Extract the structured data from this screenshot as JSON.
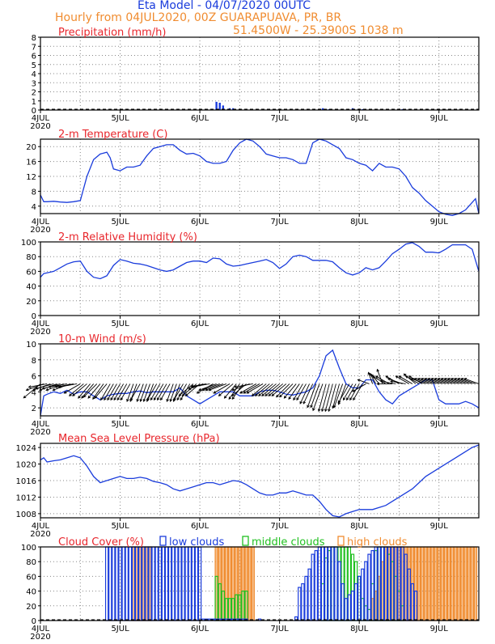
{
  "header": {
    "title": "Eta Model - 04/07/2020 00UTC",
    "subtitle": "Hourly from 04JUL2020, 00Z  GUARAPUAVA, PR, BR",
    "location": "51.4500W - 25.3900S    1038  m"
  },
  "colors": {
    "line": "#1a3cdc",
    "panel_title": "#e8262c",
    "header_title": "#1a3cdc",
    "header_sub": "#f08c30",
    "low": "#1a3cdc",
    "middle": "#20c020",
    "high": "#f08c30",
    "frame": "#000000",
    "grid": "#888888",
    "wind": "#000000",
    "bar_fill": "#1a3cdc"
  },
  "time_axis": {
    "hours": [
      0,
      132
    ],
    "tick_labels": [
      "4JUL",
      "5JUL",
      "6JUL",
      "7JUL",
      "8JUL",
      "9JUL"
    ],
    "year_label": "2020"
  },
  "chart_data": [
    {
      "id": "precip",
      "type": "bar",
      "title": "Precipitation (mm/h)",
      "ylim": [
        0,
        8
      ],
      "yticks": [
        0,
        1,
        2,
        3,
        4,
        5,
        6,
        7,
        8
      ],
      "x": [
        53,
        54,
        55,
        57,
        58,
        85,
        86,
        87,
        89,
        91,
        94,
        97,
        109,
        113
      ],
      "values": [
        0.9,
        0.8,
        0.5,
        0.2,
        0.2,
        0.2,
        0.1,
        0.1,
        0.1,
        0.1,
        0.2,
        0.1,
        0.1,
        0.1
      ]
    },
    {
      "id": "temp",
      "type": "line",
      "title": "2-m Temperature (C)",
      "ylim": [
        2,
        22
      ],
      "yticks": [
        4,
        8,
        12,
        16,
        20
      ],
      "x": [
        0,
        1,
        2,
        4,
        6,
        8,
        10,
        12,
        14,
        16,
        18,
        20,
        21,
        22,
        24,
        26,
        28,
        30,
        32,
        34,
        36,
        38,
        40,
        42,
        44,
        46,
        48,
        50,
        52,
        54,
        56,
        58,
        60,
        62,
        64,
        66,
        68,
        70,
        72,
        74,
        76,
        78,
        80,
        82,
        84,
        86,
        88,
        90,
        92,
        94,
        96,
        98,
        100,
        102,
        104,
        106,
        108,
        110,
        112,
        114,
        116,
        118,
        120,
        122,
        124,
        126,
        128,
        130,
        131,
        132
      ],
      "values": [
        7,
        5.2,
        5.2,
        5.3,
        5.1,
        5,
        5.2,
        5.5,
        12,
        16.5,
        18,
        18.5,
        17,
        14,
        13.5,
        14.5,
        14.5,
        15,
        17.5,
        19.5,
        20,
        20.5,
        20.5,
        19,
        18,
        18.2,
        17.5,
        16,
        15.5,
        15.5,
        16,
        19,
        21,
        22,
        21.5,
        20,
        18,
        17.5,
        17,
        17,
        16.5,
        15.5,
        15.5,
        21,
        22,
        21.5,
        20.5,
        19.5,
        17,
        16.5,
        15.5,
        15,
        13.5,
        15.5,
        14.5,
        14.5,
        14,
        12,
        9,
        7.5,
        5.5,
        4,
        2.5,
        1.8,
        1.5,
        2,
        3,
        5,
        6,
        2
      ]
    },
    {
      "id": "rh",
      "type": "line",
      "title": "2-m Relative Humidity (%)",
      "ylim": [
        0,
        100
      ],
      "yticks": [
        0,
        20,
        40,
        60,
        80,
        100
      ],
      "x": [
        0,
        1,
        2,
        4,
        6,
        8,
        10,
        12,
        14,
        16,
        18,
        20,
        22,
        24,
        26,
        28,
        30,
        32,
        34,
        36,
        38,
        40,
        42,
        44,
        46,
        48,
        50,
        52,
        54,
        56,
        58,
        60,
        62,
        64,
        66,
        68,
        70,
        72,
        74,
        76,
        78,
        80,
        82,
        84,
        86,
        88,
        90,
        92,
        94,
        96,
        98,
        100,
        102,
        104,
        106,
        108,
        110,
        112,
        114,
        116,
        118,
        120,
        122,
        124,
        126,
        128,
        130,
        132
      ],
      "values": [
        52,
        57,
        58,
        60,
        65,
        70,
        73,
        74,
        60,
        52,
        50,
        54,
        68,
        76,
        74,
        71,
        70,
        68,
        65,
        62,
        60,
        62,
        67,
        72,
        74,
        74,
        72,
        78,
        77,
        70,
        67,
        68,
        70,
        72,
        74,
        76,
        72,
        64,
        70,
        80,
        82,
        80,
        75,
        75,
        75,
        73,
        65,
        58,
        55,
        58,
        65,
        62,
        65,
        74,
        84,
        90,
        97,
        99,
        94,
        86,
        86,
        85,
        90,
        96,
        96,
        96,
        90,
        60
      ]
    },
    {
      "id": "wind",
      "type": "line",
      "title": "10-m Wind (m/s)",
      "ylim": [
        1,
        10
      ],
      "yticks": [
        2,
        4,
        6,
        8,
        10
      ],
      "x": [
        0,
        1,
        2,
        4,
        6,
        8,
        10,
        12,
        14,
        16,
        18,
        20,
        22,
        24,
        26,
        28,
        30,
        32,
        34,
        36,
        38,
        40,
        42,
        44,
        46,
        48,
        50,
        52,
        54,
        56,
        58,
        60,
        62,
        64,
        66,
        68,
        70,
        72,
        74,
        76,
        78,
        80,
        82,
        84,
        86,
        88,
        90,
        92,
        94,
        96,
        98,
        100,
        102,
        104,
        106,
        108,
        110,
        112,
        114,
        116,
        118,
        120,
        122,
        124,
        126,
        128,
        130,
        132
      ],
      "values": [
        1,
        3.5,
        3.7,
        4,
        3.8,
        4.2,
        3.7,
        4,
        4,
        3.5,
        3,
        3.5,
        3.7,
        3.8,
        3.8,
        4,
        4.1,
        3.9,
        4,
        4,
        4,
        4,
        4.5,
        3.5,
        3,
        2.5,
        3,
        3.5,
        4,
        4,
        4,
        3.5,
        3.5,
        3.5,
        4,
        4.2,
        4.2,
        4,
        3.7,
        3.6,
        3.8,
        4,
        4.5,
        6,
        8.5,
        9.2,
        7,
        5,
        4.5,
        4.5,
        5.5,
        5.5,
        4,
        3,
        2.5,
        3.5,
        4,
        4.5,
        5,
        5.5,
        5.5,
        3,
        2.5,
        2.5,
        2.5,
        2.8,
        2.5,
        2
      ]
    },
    {
      "id": "mslp",
      "type": "line",
      "title": "Mean Sea Level Pressure (hPa)",
      "ylim": [
        1007,
        1025
      ],
      "yticks": [
        1008,
        1012,
        1016,
        1020,
        1024
      ],
      "x": [
        0,
        1,
        2,
        4,
        6,
        8,
        10,
        12,
        14,
        16,
        18,
        20,
        22,
        24,
        26,
        28,
        30,
        32,
        34,
        36,
        38,
        40,
        42,
        44,
        46,
        48,
        50,
        52,
        54,
        56,
        58,
        60,
        62,
        64,
        66,
        68,
        70,
        72,
        74,
        76,
        78,
        80,
        82,
        84,
        86,
        88,
        90,
        92,
        94,
        96,
        98,
        100,
        102,
        104,
        106,
        108,
        110,
        112,
        114,
        116,
        118,
        120,
        122,
        124,
        126,
        128,
        130,
        132
      ],
      "values": [
        1021,
        1021.5,
        1020.5,
        1020.8,
        1021,
        1021.5,
        1022,
        1021.5,
        1019.5,
        1017,
        1015.5,
        1016,
        1016.5,
        1017,
        1016.5,
        1016.5,
        1016.8,
        1016.5,
        1015.8,
        1015.5,
        1015,
        1014,
        1013.5,
        1014,
        1014.5,
        1015,
        1015.5,
        1015.5,
        1015,
        1015.5,
        1016,
        1015.8,
        1015,
        1014,
        1013,
        1012.5,
        1012.5,
        1013,
        1013,
        1013.5,
        1013,
        1012.5,
        1012.5,
        1011,
        1009,
        1007.5,
        1007.2,
        1008,
        1008.5,
        1009,
        1009,
        1009,
        1009.5,
        1010,
        1011,
        1012,
        1013,
        1014,
        1015.5,
        1017,
        1018,
        1019,
        1020,
        1021,
        1022,
        1023,
        1024,
        1024.6
      ]
    },
    {
      "id": "clouds",
      "type": "bar",
      "title": "Cloud Cover (%)",
      "ylim": [
        0,
        100
      ],
      "yticks": [
        0,
        20,
        40,
        60,
        80,
        100
      ],
      "legend": [
        "low clouds",
        "middle clouds",
        "high clouds"
      ],
      "series": [
        {
          "name": "low clouds",
          "x": [
            20,
            21,
            22,
            23,
            24,
            25,
            26,
            27,
            28,
            29,
            30,
            31,
            32,
            33,
            34,
            35,
            36,
            37,
            38,
            39,
            40,
            41,
            42,
            43,
            44,
            45,
            46,
            47,
            48,
            49,
            50,
            51,
            52,
            53,
            54,
            55,
            56,
            57,
            58,
            59,
            60,
            61,
            62,
            66,
            77,
            78,
            79,
            80,
            81,
            82,
            83,
            84,
            85,
            86,
            87,
            88,
            89,
            90,
            91,
            92,
            93,
            94,
            95,
            96,
            97,
            98,
            99,
            100,
            101,
            102,
            103,
            104,
            105,
            106,
            107,
            108,
            109,
            110,
            111,
            112,
            113
          ],
          "values": [
            100,
            100,
            100,
            100,
            100,
            100,
            100,
            100,
            100,
            100,
            100,
            100,
            100,
            100,
            100,
            100,
            100,
            100,
            100,
            100,
            100,
            100,
            100,
            100,
            100,
            100,
            100,
            100,
            100,
            2,
            2,
            2,
            2,
            2,
            2,
            2,
            2,
            2,
            2,
            2,
            2,
            2,
            2,
            2,
            5,
            45,
            50,
            60,
            70,
            90,
            95,
            100,
            100,
            100,
            100,
            100,
            100,
            80,
            50,
            30,
            35,
            40,
            50,
            60,
            70,
            80,
            90,
            95,
            100,
            100,
            100,
            100,
            100,
            100,
            100,
            100,
            100,
            90,
            70,
            50,
            40
          ]
        },
        {
          "name": "middle clouds",
          "x": [
            53,
            54,
            55,
            56,
            57,
            58,
            59,
            60,
            61,
            62,
            85,
            86,
            87,
            88,
            89,
            90,
            91,
            92,
            93,
            94,
            95,
            96,
            97,
            98,
            99,
            100,
            101,
            102,
            103,
            104,
            105,
            106,
            107,
            108,
            109
          ],
          "values": [
            60,
            50,
            40,
            30,
            30,
            30,
            35,
            35,
            40,
            40,
            50,
            85,
            95,
            100,
            100,
            100,
            100,
            100,
            100,
            90,
            80,
            60,
            30,
            20,
            15,
            50,
            95,
            100,
            100,
            100,
            90,
            80,
            60,
            40,
            20
          ]
        },
        {
          "name": "high clouds",
          "x": [
            28,
            29,
            30,
            31,
            32,
            33,
            53,
            54,
            55,
            56,
            57,
            58,
            59,
            60,
            61,
            62,
            63,
            64,
            100,
            101,
            102,
            103,
            104,
            105,
            106,
            107,
            108,
            109,
            110,
            111,
            112,
            113,
            114,
            115,
            116,
            117,
            118,
            119,
            120,
            121,
            122,
            123,
            124,
            125,
            126,
            127,
            128,
            129,
            130,
            131
          ],
          "values": [
            100,
            100,
            100,
            100,
            100,
            100,
            100,
            100,
            100,
            100,
            100,
            100,
            100,
            100,
            100,
            100,
            100,
            100,
            30,
            40,
            60,
            80,
            100,
            100,
            100,
            100,
            100,
            100,
            100,
            100,
            100,
            100,
            100,
            100,
            100,
            100,
            100,
            100,
            100,
            100,
            100,
            100,
            100,
            100,
            100,
            100,
            100,
            100,
            100,
            100
          ]
        }
      ]
    }
  ],
  "wind_barbs": {
    "x": [
      0,
      1,
      2,
      3,
      4,
      5,
      6,
      7,
      8,
      9,
      10,
      11,
      12,
      13,
      14,
      15,
      16,
      17,
      18,
      19,
      20,
      21,
      22,
      23,
      24,
      25,
      26,
      27,
      28,
      29,
      30,
      31,
      32,
      33,
      34,
      35,
      36,
      37,
      38,
      39,
      40,
      41,
      42,
      43,
      44,
      45,
      46,
      47,
      48,
      49,
      50,
      51,
      52,
      53,
      54,
      55,
      56,
      57,
      58,
      59,
      60,
      61,
      62,
      63,
      64,
      65,
      66,
      67,
      68,
      69,
      70,
      71,
      72,
      73,
      74,
      75,
      76,
      77,
      78,
      79,
      80,
      81,
      82,
      83,
      84,
      85,
      86,
      87,
      88,
      89,
      90,
      91,
      92,
      93,
      94,
      95,
      96,
      97,
      98,
      99,
      100,
      101,
      102,
      103,
      104,
      105,
      106,
      107,
      108,
      109,
      110,
      111,
      112,
      113,
      114,
      115,
      116,
      117,
      118,
      119,
      120,
      121,
      122,
      123,
      124,
      125,
      126,
      127,
      128,
      129,
      130,
      131,
      132
    ],
    "direction_deg": [
      130,
      110,
      100,
      110,
      105,
      110,
      105,
      110,
      100,
      110,
      100,
      100,
      120,
      130,
      130,
      140,
      140,
      135,
      140,
      145,
      140,
      150,
      150,
      150,
      150,
      150,
      150,
      150,
      160,
      160,
      150,
      160,
      160,
      160,
      160,
      150,
      150,
      150,
      150,
      150,
      160,
      160,
      160,
      150,
      150,
      150,
      130,
      130,
      130,
      110,
      100,
      100,
      120,
      110,
      110,
      110,
      110,
      120,
      130,
      140,
      145,
      145,
      130,
      110,
      100,
      120,
      120,
      120,
      130,
      130,
      130,
      130,
      130,
      130,
      130,
      135,
      135,
      140,
      145,
      150,
      150,
      155,
      155,
      160,
      160,
      160,
      165,
      165,
      165,
      165,
      165,
      160,
      160,
      150,
      150,
      150,
      150,
      150,
      120,
      70,
      20,
      30,
      40,
      20,
      60,
      60,
      90,
      80,
      60,
      70,
      80,
      60,
      60,
      50,
      60,
      60,
      70,
      70,
      70,
      70,
      70,
      70,
      70,
      70,
      70,
      70,
      70,
      70,
      70,
      70,
      70,
      70,
      70
    ],
    "speed": [
      5,
      4,
      4,
      4,
      4,
      4,
      4,
      4,
      4,
      4,
      4,
      4,
      4,
      4,
      4,
      4,
      4,
      4,
      4,
      4,
      4,
      4,
      4,
      4,
      4,
      4,
      4,
      4,
      4,
      4,
      4,
      4,
      4,
      4,
      4,
      4,
      4,
      4,
      4,
      4,
      4,
      4,
      4,
      4,
      4,
      4,
      4,
      4,
      4,
      3,
      3,
      4,
      4,
      4,
      4,
      4,
      4,
      4,
      4,
      4,
      4,
      4,
      4,
      4,
      4,
      4,
      4,
      4,
      4,
      4,
      4,
      4,
      4,
      4,
      4,
      4,
      4,
      4,
      4,
      4,
      4,
      5,
      5,
      6,
      6,
      7,
      7,
      7,
      7,
      7,
      6,
      6,
      5,
      5,
      4,
      4,
      4,
      4,
      3,
      2,
      2,
      2,
      2,
      3,
      3,
      3,
      3,
      3,
      3,
      3,
      3,
      3,
      3,
      3,
      3,
      3,
      3,
      3,
      3,
      3,
      3,
      3,
      3,
      3,
      3,
      3,
      3,
      3,
      3,
      3,
      3,
      3,
      3
    ]
  }
}
